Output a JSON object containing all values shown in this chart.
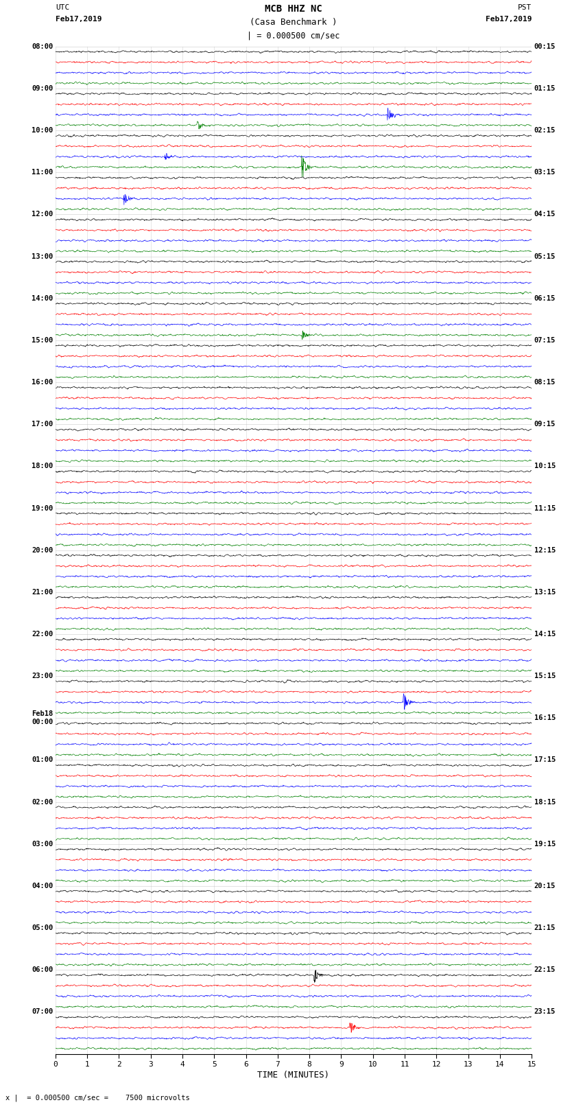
{
  "title_line1": "MCB HHZ NC",
  "title_line2": "(Casa Benchmark )",
  "title_line3": "| = 0.000500 cm/sec",
  "left_header_line1": "UTC",
  "left_header_line2": "Feb17,2019",
  "right_header_line1": "PST",
  "right_header_line2": "Feb17,2019",
  "bottom_label": "TIME (MINUTES)",
  "bottom_note": "x |  = 0.000500 cm/sec =    7500 microvolts",
  "utc_labels": [
    "08:00",
    "09:00",
    "10:00",
    "11:00",
    "12:00",
    "13:00",
    "14:00",
    "15:00",
    "16:00",
    "17:00",
    "18:00",
    "19:00",
    "20:00",
    "21:00",
    "22:00",
    "23:00",
    "Feb18\n00:00",
    "01:00",
    "02:00",
    "03:00",
    "04:00",
    "05:00",
    "06:00",
    "07:00"
  ],
  "pst_labels": [
    "00:15",
    "01:15",
    "02:15",
    "03:15",
    "04:15",
    "05:15",
    "06:15",
    "07:15",
    "08:15",
    "09:15",
    "10:15",
    "11:15",
    "12:15",
    "13:15",
    "14:15",
    "15:15",
    "16:15",
    "17:15",
    "18:15",
    "19:15",
    "20:15",
    "21:15",
    "22:15",
    "23:15"
  ],
  "colors": [
    "black",
    "red",
    "blue",
    "green"
  ],
  "n_hours": 24,
  "traces_per_hour": 4,
  "n_minutes": 15,
  "samples_per_minute": 100,
  "noise_amplitude": 0.15,
  "x_ticks": [
    0,
    1,
    2,
    3,
    4,
    5,
    6,
    7,
    8,
    9,
    10,
    11,
    12,
    13,
    14,
    15
  ],
  "event_rows_from_top": [
    {
      "row": 6,
      "minute": 10.5,
      "amplitude": 1.5,
      "color": "green"
    },
    {
      "row": 7,
      "minute": 4.5,
      "amplitude": 1.0,
      "color": "blue"
    },
    {
      "row": 10,
      "minute": 3.5,
      "amplitude": 0.8,
      "color": "green"
    },
    {
      "row": 11,
      "minute": 7.8,
      "amplitude": 2.5,
      "color": "blue"
    },
    {
      "row": 11,
      "minute": 8.2,
      "amplitude": 2.0,
      "color": "blue"
    },
    {
      "row": 14,
      "minute": 2.2,
      "amplitude": 1.5,
      "color": "green"
    },
    {
      "row": 14,
      "minute": 13.5,
      "amplitude": 1.0,
      "color": "green"
    },
    {
      "row": 27,
      "minute": 7.8,
      "amplitude": 1.0,
      "color": "black"
    },
    {
      "row": 27,
      "minute": 8.5,
      "amplitude": 0.8,
      "color": "black"
    },
    {
      "row": 62,
      "minute": 11.0,
      "amplitude": 2.0,
      "color": "green"
    },
    {
      "row": 88,
      "minute": 8.2,
      "amplitude": 1.5,
      "color": "blue"
    },
    {
      "row": 93,
      "minute": 9.3,
      "amplitude": 1.5,
      "color": "green"
    }
  ],
  "noise_seeds": null
}
